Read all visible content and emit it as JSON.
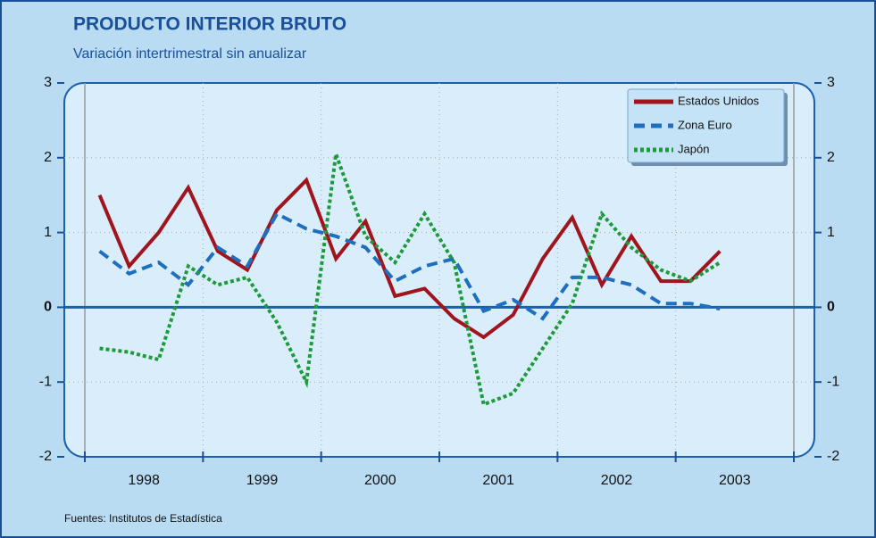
{
  "chart_data": {
    "type": "line",
    "title": "PRODUCTO INTERIOR BRUTO",
    "subtitle": "Variación intertrimestral sin anualizar",
    "source": "Fuentes: Institutos de Estadística",
    "x": [
      1998.125,
      1998.375,
      1998.625,
      1998.875,
      1999.125,
      1999.375,
      1999.625,
      1999.875,
      2000.125,
      2000.375,
      2000.625,
      2000.875,
      2001.125,
      2001.375,
      2001.625,
      2001.875,
      2002.125,
      2002.375,
      2002.625,
      2002.875,
      2003.125,
      2003.375
    ],
    "xlim": [
      1998,
      2004
    ],
    "xticks": [
      {
        "value": 1998.5,
        "label": "1998"
      },
      {
        "value": 1999.5,
        "label": "1999"
      },
      {
        "value": 2000.5,
        "label": "2000"
      },
      {
        "value": 2001.5,
        "label": "2001"
      },
      {
        "value": 2002.5,
        "label": "2002"
      },
      {
        "value": 2003.5,
        "label": "2003"
      }
    ],
    "ylim": [
      -2,
      3
    ],
    "yticks": [
      -2,
      -1,
      0,
      1,
      2,
      3
    ],
    "grid": true,
    "legend": "top-right",
    "series": [
      {
        "name": "Estados Unidos",
        "color": "#a0141e",
        "dash": "solid",
        "values": [
          1.5,
          0.55,
          1.0,
          1.6,
          0.75,
          0.5,
          1.3,
          1.7,
          0.65,
          1.15,
          0.15,
          0.25,
          -0.15,
          -0.4,
          -0.1,
          0.65,
          1.2,
          0.3,
          0.95,
          0.35,
          0.35,
          0.75
        ]
      },
      {
        "name": "Zona Euro",
        "color": "#1f6fbf",
        "dash": "dashed",
        "values": [
          0.75,
          0.45,
          0.6,
          0.3,
          0.8,
          0.55,
          1.25,
          1.05,
          0.95,
          0.8,
          0.35,
          0.55,
          0.65,
          -0.05,
          0.1,
          -0.15,
          0.4,
          0.4,
          0.3,
          0.05,
          0.05,
          -0.02
        ]
      },
      {
        "name": "Japón",
        "color": "#1e9a3c",
        "dash": "dotted",
        "values": [
          -0.55,
          -0.6,
          -0.7,
          0.55,
          0.3,
          0.4,
          -0.2,
          -1.0,
          2.05,
          0.95,
          0.6,
          1.25,
          0.6,
          -1.3,
          -1.15,
          -0.55,
          0.05,
          1.25,
          0.8,
          0.5,
          0.35,
          0.6
        ]
      }
    ]
  }
}
